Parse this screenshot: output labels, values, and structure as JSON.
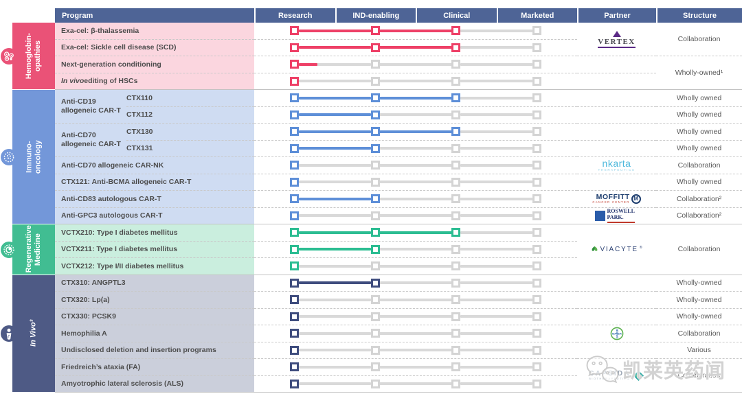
{
  "header": {
    "program": "Program",
    "stages": [
      "Research",
      "IND-enabling",
      "Clinical",
      "Marketed"
    ],
    "partner": "Partner",
    "structure": "Structure",
    "bg": "#4e6496"
  },
  "watermark": {
    "text": "凯莱英药闻",
    "icon": "wechat-icon"
  },
  "stage_colors": {
    "future_line": "#d9d9d9",
    "future_square": "#d4d4d4"
  },
  "partner_logos": {
    "vertex": {
      "label": "VERTEX"
    },
    "nkarta": {
      "label": "nkarta",
      "sub": "THERAPEUTICS"
    },
    "moffitt": {
      "label": "MOFFITT",
      "sub": "CANCER CENTER"
    },
    "roswell": {
      "label": "ROSWELL PARK."
    },
    "viacyte": {
      "label": "VIACYTE"
    },
    "bayer": {
      "label": "BAYER"
    },
    "capsida": {
      "label": "CAPSIDA",
      "sub": "BIOTHERAPEUTICS"
    }
  },
  "groups": [
    {
      "id": "hemoglobinopathies",
      "label_lines": "Hemoglobin-\nopathies",
      "italic": false,
      "icon": "blood-cells-icon",
      "accent": "#ea5277",
      "square": "#ee4067",
      "row_bg": "#fbd6df",
      "items": [
        {
          "program": "Exa-cel: β-thalassemia",
          "stage": 2
        },
        {
          "program": "Exa-cel: Sickle cell disease (SCD)",
          "stage": 2
        },
        {
          "program": "Next-generation conditioning",
          "stage": 0,
          "partial": true
        },
        {
          "program": "In vivo editing of HSCs",
          "stage": 0,
          "italic_prefix": "In vivo"
        }
      ],
      "partners": [
        {
          "row": 0,
          "span": 2,
          "logo": "vertex"
        }
      ],
      "structures": [
        {
          "row": 0,
          "span": 2,
          "text": "Collaboration"
        },
        {
          "row": 2,
          "span": 2,
          "text": "Wholly-owned¹"
        }
      ]
    },
    {
      "id": "immuno-oncology",
      "label_lines": "Immuno-oncology",
      "italic": false,
      "icon": "virus-cell-icon",
      "accent": "#7397d9",
      "square": "#5e8fd8",
      "row_bg": "#cfdcf2",
      "items": [
        {
          "parent": "Anti-CD19 allogeneic CAR-T",
          "subrows": [
            {
              "code": "CTX110",
              "stage": 2
            },
            {
              "code": "CTX112",
              "stage": 1
            }
          ]
        },
        {
          "parent": "Anti-CD70 allogeneic CAR-T",
          "subrows": [
            {
              "code": "CTX130",
              "stage": 2
            },
            {
              "code": "CTX131",
              "stage": 1
            }
          ]
        },
        {
          "program": "Anti-CD70 allogeneic CAR-NK",
          "stage": 0
        },
        {
          "program": "CTX121: Anti-BCMA allogeneic CAR-T",
          "stage": 0
        },
        {
          "program": "Anti-CD83 autologous CAR-T",
          "stage": 1
        },
        {
          "program": "Anti-GPC3 autologous CAR-T",
          "stage": 0
        }
      ],
      "partners": [
        {
          "row": 4,
          "span": 1,
          "logo": "nkarta"
        },
        {
          "row": 6,
          "span": 1,
          "logo": "moffitt"
        },
        {
          "row": 7,
          "span": 1,
          "logo": "roswell"
        }
      ],
      "structures": [
        {
          "row": 0,
          "span": 1,
          "text": "Wholly owned"
        },
        {
          "row": 1,
          "span": 1,
          "text": "Wholly owned"
        },
        {
          "row": 2,
          "span": 1,
          "text": "Wholly owned"
        },
        {
          "row": 3,
          "span": 1,
          "text": "Wholly owned"
        },
        {
          "row": 4,
          "span": 1,
          "text": "Collaboration"
        },
        {
          "row": 5,
          "span": 1,
          "text": "Wholly owned"
        },
        {
          "row": 6,
          "span": 1,
          "text": "Collaboration²"
        },
        {
          "row": 7,
          "span": 1,
          "text": "Collaboration²"
        }
      ]
    },
    {
      "id": "regenerative-medicine",
      "label_lines": "Regenerative\nMedicine",
      "italic": false,
      "icon": "regenerative-cell-icon",
      "accent": "#41bd92",
      "square": "#2cbd92",
      "row_bg": "#caeede",
      "items": [
        {
          "program": "VCTX210: Type I diabetes mellitus",
          "stage": 2
        },
        {
          "program": "VCTX211: Type I diabetes mellitus",
          "stage": 1
        },
        {
          "program": "VCTX212: Type I/II diabetes mellitus",
          "stage": 0
        }
      ],
      "partners": [
        {
          "row": 0,
          "span": 3,
          "logo": "viacyte"
        }
      ],
      "structures": [
        {
          "row": 0,
          "span": 3,
          "text": "Collaboration"
        }
      ]
    },
    {
      "id": "in-vivo",
      "label_lines": "In Vivo³",
      "italic": true,
      "icon": "person-icon",
      "accent": "#4e5a85",
      "square": "#3f4d7e",
      "row_bg": "#cbcfdb",
      "items": [
        {
          "program": "CTX310: ANGPTL3",
          "stage": 1
        },
        {
          "program": "CTX320: Lp(a)",
          "stage": 0
        },
        {
          "program": "CTX330: PCSK9",
          "stage": 0
        },
        {
          "program": "Hemophilia A",
          "stage": 0
        },
        {
          "program": "Undisclosed deletion and insertion programs",
          "stage": 0
        },
        {
          "program": "Friedreich’s ataxia (FA)",
          "stage": 0
        },
        {
          "program": "Amyotrophic lateral sclerosis (ALS)",
          "stage": 0
        }
      ],
      "partners": [
        {
          "row": 3,
          "span": 1,
          "logo": "bayer"
        },
        {
          "row": 5,
          "span": 2,
          "logo": "capsida"
        }
      ],
      "structures": [
        {
          "row": 0,
          "span": 1,
          "text": "Wholly-owned"
        },
        {
          "row": 1,
          "span": 1,
          "text": "Wholly-owned"
        },
        {
          "row": 2,
          "span": 1,
          "text": "Wholly-owned"
        },
        {
          "row": 3,
          "span": 1,
          "text": "Collaboration"
        },
        {
          "row": 4,
          "span": 1,
          "text": "Various"
        },
        {
          "row": 5,
          "span": 2,
          "text": "Collaboration"
        }
      ]
    }
  ]
}
